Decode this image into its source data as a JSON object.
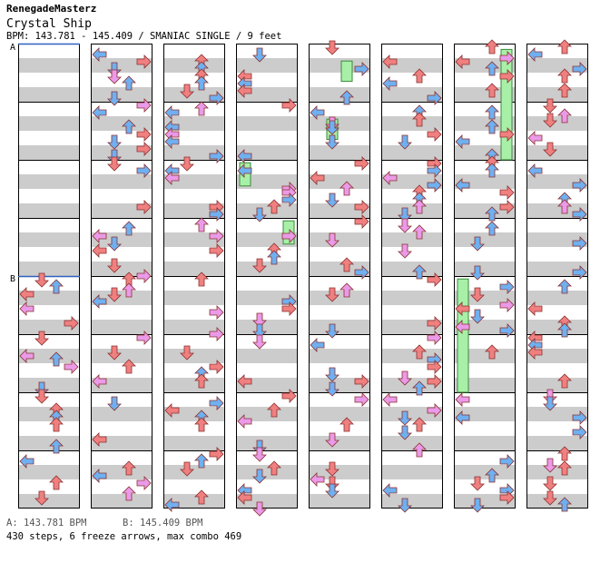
{
  "header": {
    "author": "RenegadeMasterz",
    "song": "Crystal Ship",
    "meta": "BPM: 143.781 - 145.409 / SMANIAC SINGLE / 9 feet"
  },
  "markers": [
    "A",
    "B"
  ],
  "footer": {
    "bpm_a": "A: 143.781 BPM",
    "bpm_b": "B: 145.409 BPM",
    "summary": "430 steps, 6 freeze arrows, max combo 469"
  },
  "chart_data": {
    "type": "step-chart",
    "columns": 8,
    "measures_per_column": 8,
    "colors": {
      "quarter": "#f08080",
      "eighth": "#6fb0f0",
      "sixteenth": "#ea9ae8",
      "freeze": "#a8f0a8",
      "band_gray": "#cccccc"
    },
    "freezes": [
      {
        "col": 4,
        "lane": 2,
        "from": 0.3,
        "to": 0.65
      },
      {
        "col": 4,
        "lane": 1,
        "from": 1.3,
        "to": 1.65
      },
      {
        "col": 3,
        "lane": 0,
        "from": 2.05,
        "to": 2.45
      },
      {
        "col": 3,
        "lane": 3,
        "from": 3.05,
        "to": 3.45
      },
      {
        "col": 6,
        "lane": 3,
        "from": 0.1,
        "to": 2.0
      },
      {
        "col": 6,
        "lane": 0,
        "from": 4.05,
        "to": 6.0
      }
    ]
  }
}
